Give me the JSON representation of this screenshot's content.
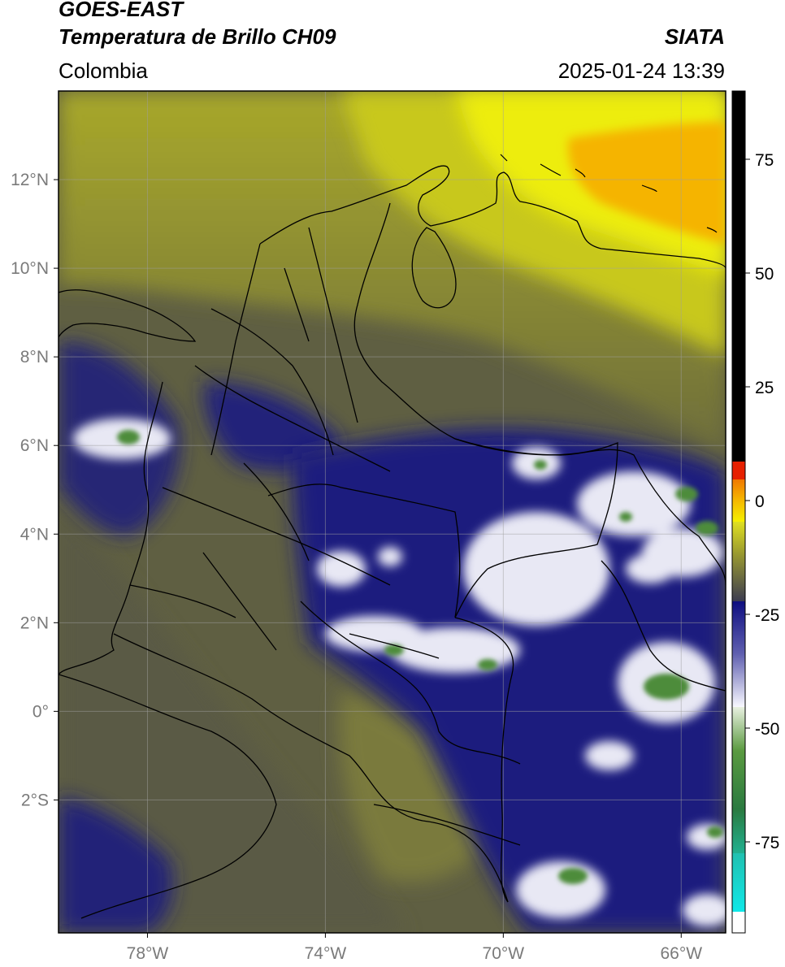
{
  "header": {
    "line1": "GOES-EAST",
    "line2": "Temperatura de Brillo CH09",
    "organization": "SIATA",
    "region": "Colombia",
    "timestamp": "2025-01-24 13:39"
  },
  "map": {
    "lon_range": [
      -80.0,
      -65.0
    ],
    "lat_range": [
      -5.0,
      14.0
    ],
    "lat_ticks": [
      {
        "value": 12,
        "label": "12°N"
      },
      {
        "value": 10,
        "label": "10°N"
      },
      {
        "value": 8,
        "label": "8°N"
      },
      {
        "value": 6,
        "label": "6°N"
      },
      {
        "value": 4,
        "label": "4°N"
      },
      {
        "value": 2,
        "label": "2°N"
      },
      {
        "value": 0,
        "label": "0°"
      },
      {
        "value": -2,
        "label": "2°S"
      }
    ],
    "lon_ticks": [
      {
        "value": -78,
        "label": "78°W"
      },
      {
        "value": -74,
        "label": "74°W"
      },
      {
        "value": -70,
        "label": "70°W"
      },
      {
        "value": -66,
        "label": "66°W"
      }
    ],
    "grid": true,
    "colors": {
      "background_olive": "#6d6d3c",
      "cold_navy": "#1c1c7a",
      "warm_yellow": "#e6e61c",
      "hot_orange": "#f5a000",
      "coldest_white": "#f0f0f8",
      "coldest_green": "#4a8a3a",
      "boundary": "#000000",
      "grid": "#a0a0a0"
    }
  },
  "colorbar": {
    "vmin": -95,
    "vmax": 90,
    "ticks": [
      {
        "value": 75,
        "label": "75"
      },
      {
        "value": 50,
        "label": "50"
      },
      {
        "value": 25,
        "label": "25"
      },
      {
        "value": 0,
        "label": "0"
      },
      {
        "value": -25,
        "label": "-25"
      },
      {
        "value": -50,
        "label": "-50"
      },
      {
        "value": -75,
        "label": "-75"
      }
    ]
  }
}
